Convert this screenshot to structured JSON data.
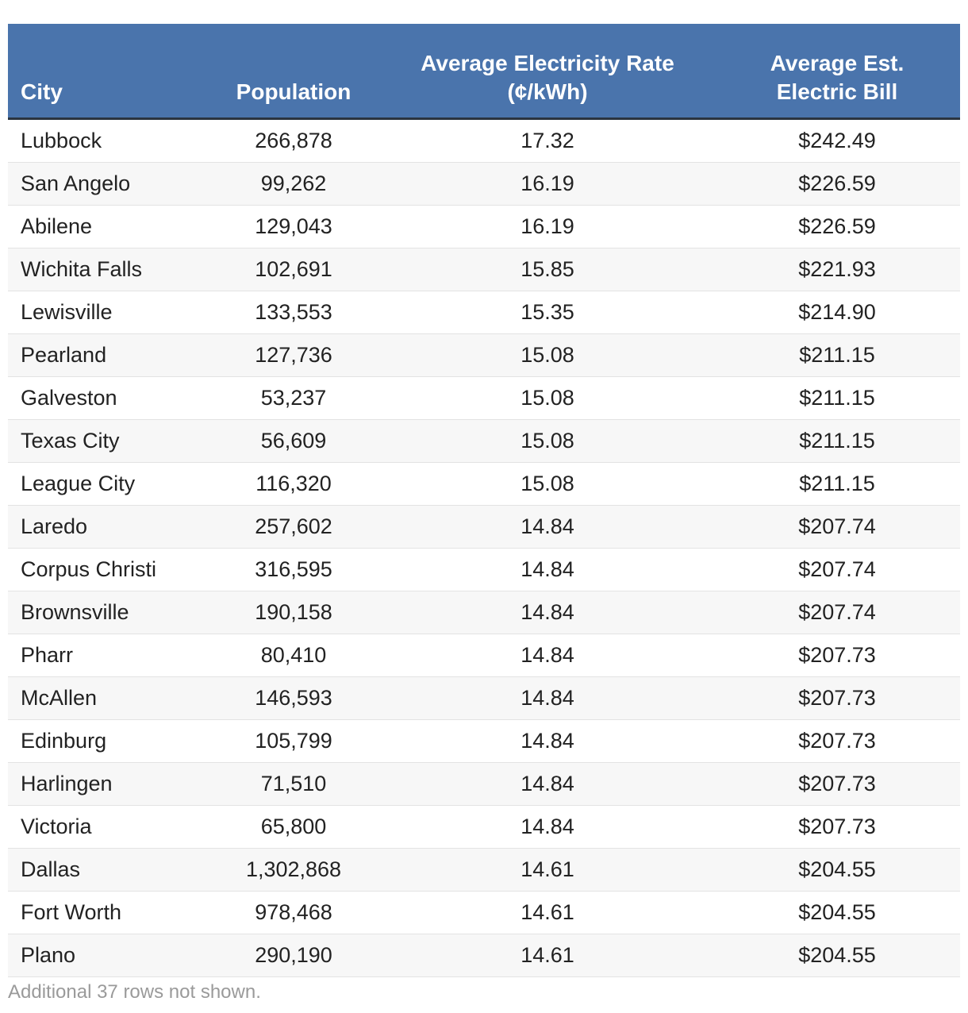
{
  "table": {
    "headers": {
      "city": "City",
      "population": "Population",
      "rate_line1": "Average Electricity Rate",
      "rate_line2": "(¢/kWh)",
      "bill_line1": "Average Est.",
      "bill_line2": "Electric Bill"
    },
    "rows": [
      {
        "city": "Lubbock",
        "population": "266,878",
        "rate": "17.32",
        "bill": "$242.49"
      },
      {
        "city": "San Angelo",
        "population": "99,262",
        "rate": "16.19",
        "bill": "$226.59"
      },
      {
        "city": "Abilene",
        "population": "129,043",
        "rate": "16.19",
        "bill": "$226.59"
      },
      {
        "city": "Wichita Falls",
        "population": "102,691",
        "rate": "15.85",
        "bill": "$221.93"
      },
      {
        "city": "Lewisville",
        "population": "133,553",
        "rate": "15.35",
        "bill": "$214.90"
      },
      {
        "city": "Pearland",
        "population": "127,736",
        "rate": "15.08",
        "bill": "$211.15"
      },
      {
        "city": "Galveston",
        "population": "53,237",
        "rate": "15.08",
        "bill": "$211.15"
      },
      {
        "city": "Texas City",
        "population": "56,609",
        "rate": "15.08",
        "bill": "$211.15"
      },
      {
        "city": "League City",
        "population": "116,320",
        "rate": "15.08",
        "bill": "$211.15"
      },
      {
        "city": "Laredo",
        "population": "257,602",
        "rate": "14.84",
        "bill": "$207.74"
      },
      {
        "city": "Corpus Christi",
        "population": "316,595",
        "rate": "14.84",
        "bill": "$207.74"
      },
      {
        "city": "Brownsville",
        "population": "190,158",
        "rate": "14.84",
        "bill": "$207.74"
      },
      {
        "city": "Pharr",
        "population": "80,410",
        "rate": "14.84",
        "bill": "$207.73"
      },
      {
        "city": "McAllen",
        "population": "146,593",
        "rate": "14.84",
        "bill": "$207.73"
      },
      {
        "city": "Edinburg",
        "population": "105,799",
        "rate": "14.84",
        "bill": "$207.73"
      },
      {
        "city": "Harlingen",
        "population": "71,510",
        "rate": "14.84",
        "bill": "$207.73"
      },
      {
        "city": "Victoria",
        "population": "65,800",
        "rate": "14.84",
        "bill": "$207.73"
      },
      {
        "city": "Dallas",
        "population": "1,302,868",
        "rate": "14.61",
        "bill": "$204.55"
      },
      {
        "city": "Fort Worth",
        "population": "978,468",
        "rate": "14.61",
        "bill": "$204.55"
      },
      {
        "city": "Plano",
        "population": "290,190",
        "rate": "14.61",
        "bill": "$204.55"
      }
    ]
  },
  "footnote": "Additional 37 rows not shown.",
  "colors": {
    "header_bg": "#4a74ac",
    "header_text": "#ffffff",
    "header_rule": "#2a3440",
    "stripe": "#f7f7f7",
    "footnote_text": "#9a9a9a"
  }
}
